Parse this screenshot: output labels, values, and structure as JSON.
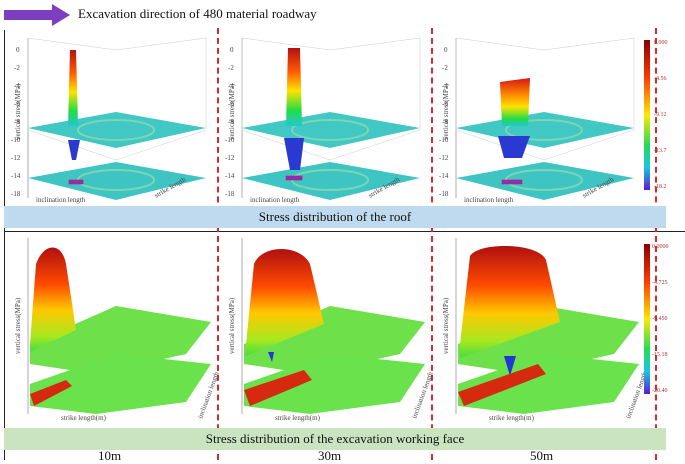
{
  "header": {
    "text": "Excavation direction of 480 material roadway",
    "arrow_color": "#7b3fbf"
  },
  "banners": {
    "roof": "Stress distribution of the roof",
    "face": "Stress distribution of the excavation working face"
  },
  "columns": [
    "10m",
    "30m",
    "50m"
  ],
  "roof_axis": {
    "zlabel": "vertical stress(MPa)",
    "xlabel": "inclination length",
    "ylabel": "strike length",
    "zticks": [
      "0",
      "-2",
      "-4",
      "-6",
      "-8",
      "-10",
      "-12",
      "-14",
      "-16",
      "-18"
    ]
  },
  "face_axis": {
    "zlabel": "vertical stress(MPa)",
    "xlabel": "strike length(m)",
    "ylabel": "inclination length"
  },
  "colorbar_roof": {
    "ticks": [
      "0.000",
      "-4.56",
      "-9.12",
      "-13.7",
      "-18.2"
    ]
  },
  "colorbar_face": {
    "ticks": [
      "0.0000",
      "-4.725",
      "-9.450",
      "-15.18",
      "-20.40"
    ]
  },
  "colors": {
    "divider": "#d92a2a",
    "roof_banner": "#bfd9ef",
    "face_banner": "#c9e4bf"
  }
}
